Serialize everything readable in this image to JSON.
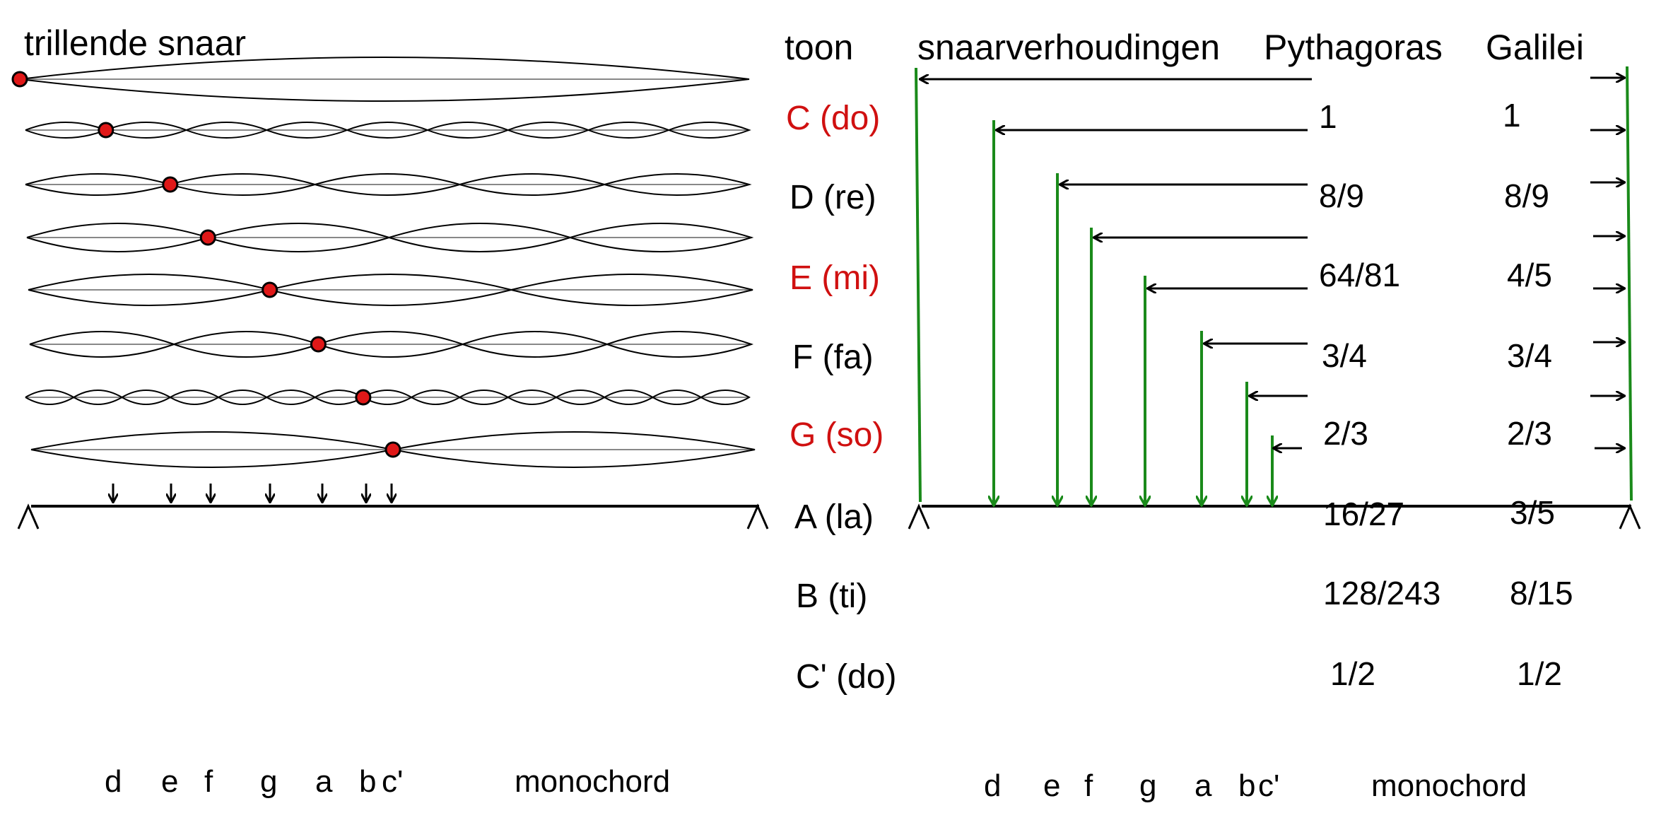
{
  "headers": {
    "left": "trillende snaar",
    "tone": "toon",
    "ratios": "snaarverhoudingen",
    "pythagoras": "Pythagoras",
    "galilei": "Galilei"
  },
  "tones": [
    {
      "name": "C (do)",
      "pythagoras": "1",
      "galilei": "1",
      "highlight": true,
      "loops": 1,
      "node": 0
    },
    {
      "name": "D (re)",
      "pythagoras": "8/9",
      "galilei": "8/9",
      "highlight": false,
      "loops": 9,
      "node": 1
    },
    {
      "name": "E (mi)",
      "pythagoras": "64/81",
      "galilei": "4/5",
      "highlight": true,
      "loops": 5,
      "node": 1
    },
    {
      "name": "F (fa)",
      "pythagoras": "3/4",
      "galilei": "3/4",
      "highlight": false,
      "loops": 4,
      "node": 1
    },
    {
      "name": "G (so)",
      "pythagoras": "2/3",
      "galilei": "2/3",
      "highlight": true,
      "loops": 3,
      "node": 1
    },
    {
      "name": "A (la)",
      "pythagoras": "16/27",
      "galilei": "3/5",
      "highlight": false,
      "loops": 5,
      "node": 2
    },
    {
      "name": "B (ti)",
      "pythagoras": "128/243",
      "galilei": "8/15",
      "highlight": false,
      "loops": 15,
      "node": 7
    },
    {
      "name": "C' (do)",
      "pythagoras": "1/2",
      "galilei": "1/2",
      "highlight": false,
      "loops": 2,
      "node": 1
    }
  ],
  "monochord_left": {
    "label": "monochord",
    "keys": [
      "d",
      "e",
      "f",
      "g",
      "a",
      "b",
      "c'"
    ]
  },
  "monochord_right": {
    "label": "monochord",
    "keys": [
      "d",
      "e",
      "f",
      "g",
      "a",
      "b",
      "c'"
    ]
  },
  "colors": {
    "highlight": "#d01010",
    "node": "#e01818",
    "green": "#1a8a1a",
    "string": "#888888"
  }
}
